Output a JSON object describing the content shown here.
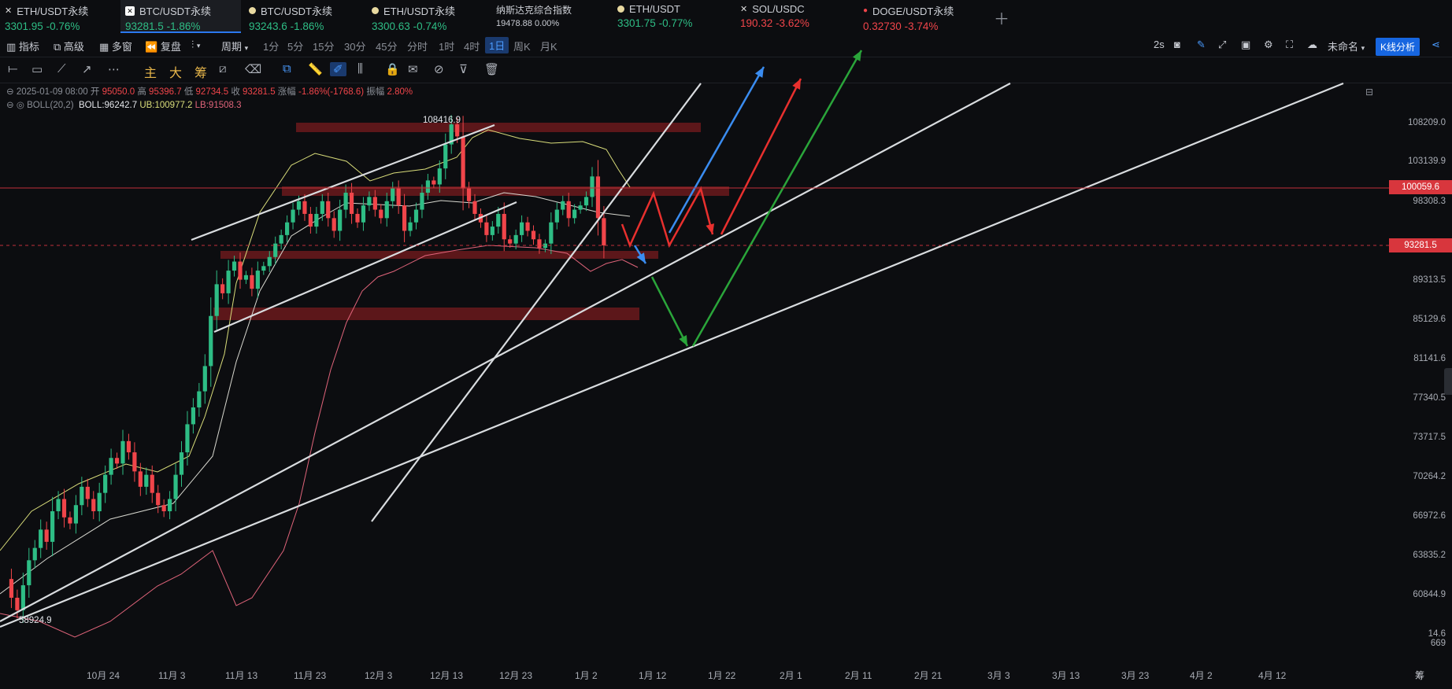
{
  "tabs": [
    {
      "name": "ETH/USDT永续",
      "price": "3301.95",
      "change": "-0.76%",
      "price_dir": "up",
      "change_dir": "up",
      "icon": "x-logo-icon"
    },
    {
      "name": "BTC/USDT永续",
      "price": "93281.5",
      "change": "-1.86%",
      "price_dir": "up",
      "change_dir": "up",
      "icon": "exchange-logo-icon",
      "active": true
    },
    {
      "name": "BTC/USDT永续",
      "price": "93243.6",
      "change": "-1.86%",
      "price_dir": "up",
      "change_dir": "up",
      "icon": "yellow-dot-icon"
    },
    {
      "name": "ETH/USDT永续",
      "price": "3300.63",
      "change": "-0.74%",
      "price_dir": "up",
      "change_dir": "up",
      "icon": "yellow-dot-icon"
    },
    {
      "name": "纳斯达克综合指数",
      "price": "19478.88",
      "change": "0.00%",
      "price_dir": "neutral",
      "change_dir": "neutral",
      "icon": ""
    },
    {
      "name": "ETH/USDT",
      "price": "3301.75",
      "change": "-0.77%",
      "price_dir": "up",
      "change_dir": "up",
      "icon": "yellow-dot-icon"
    },
    {
      "name": "SOL/USDC",
      "price": "190.32",
      "change": "-3.62%",
      "price_dir": "down",
      "change_dir": "down",
      "icon": "x-logo-icon"
    },
    {
      "name": "DOGE/USDT永续",
      "price": "0.32730",
      "change": "-3.74%",
      "price_dir": "down",
      "change_dir": "down",
      "icon": "red-dot-icon"
    }
  ],
  "toolbar": {
    "indicators": "指标",
    "advanced": "高级",
    "multi_window": "多窗",
    "replay": "复盘",
    "period": "周期",
    "timeframes": [
      "1分",
      "5分",
      "15分",
      "30分",
      "45分",
      "分时",
      "1时",
      "4时",
      "1日",
      "周K",
      "月K"
    ],
    "selected_timeframe": "1日",
    "refresh": "2s",
    "layout_name": "未命名",
    "k_analysis": "K线分析"
  },
  "drawing_modes": [
    "主",
    "大",
    "筹"
  ],
  "info": {
    "date": "2025-01-09 08:00",
    "open_label": "开",
    "open": "95050.0",
    "high_label": "高",
    "high": "95396.7",
    "low_label": "低",
    "low": "92734.5",
    "close_label": "收",
    "close": "93281.5",
    "chg_label": "涨幅",
    "chg": "-1.86%(-1768.6)",
    "amp_label": "振幅",
    "amp": "2.80%",
    "boll": "BOLL(20,2)",
    "boll_mid": "BOLL:96242.7",
    "boll_ub": "UB:100977.2",
    "boll_lb": "LB:91508.3"
  },
  "y_axis": [
    "108209.0",
    "103139.9",
    "98308.3",
    "89313.5",
    "85129.6",
    "81141.6",
    "77340.5",
    "73717.5",
    "70264.2",
    "66972.6",
    "63835.2",
    "60844.9",
    "14.6",
    "669"
  ],
  "price_tags": {
    "line": "100059.6",
    "current": "93281.5"
  },
  "peak_labels": {
    "high": "108416.9",
    "low": "58924.9"
  },
  "x_axis": [
    "10月 24",
    "11月 3",
    "11月 13",
    "11月 23",
    "12月 3",
    "12月 13",
    "12月 23",
    "1月 2",
    "1月 12",
    "1月 22",
    "2月 1",
    "2月 11",
    "2月 21",
    "3月 3",
    "3月 13",
    "3月 23",
    "4月 2",
    "4月 12"
  ],
  "corner": "筹",
  "colors": {
    "up": "#2ebd85",
    "down": "#f0454a",
    "accent": "#2b78f0",
    "zone": "#6b1a1c",
    "upper_band": "#d9dd7a",
    "lower_band": "#e0647a"
  }
}
